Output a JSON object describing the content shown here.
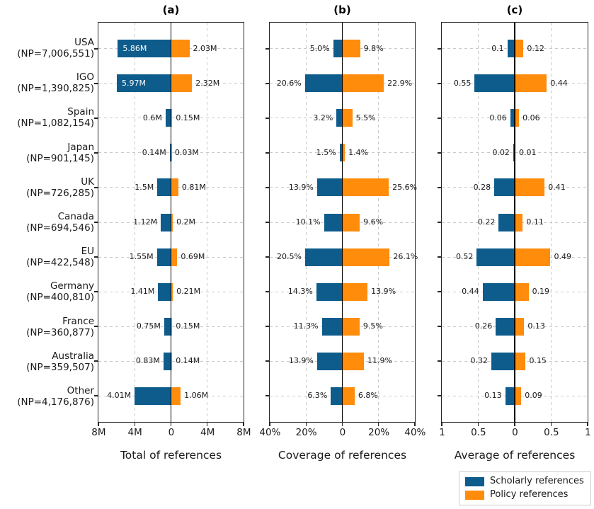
{
  "chart_data": {
    "type": "bar",
    "variant": "horizontal-diverging-bars",
    "grid": "dashed",
    "categories": [
      "USA",
      "IGO",
      "Spain",
      "Japan",
      "UK",
      "Canada",
      "EU",
      "Germany",
      "France",
      "Australia",
      "Other"
    ],
    "category_np": [
      "(NP=7,006,551)",
      "(NP=1,390,825)",
      "(NP=1,082,154)",
      "(NP=901,145)",
      "(NP=726,285)",
      "(NP=694,546)",
      "(NP=422,548)",
      "(NP=400,810)",
      "(NP=360,877)",
      "(NP=359,507)",
      "(NP=4,176,876)"
    ],
    "colors": {
      "scholarly": "#0d5c8c",
      "policy": "#ff8c0a"
    },
    "legend": {
      "position": "bottom-right",
      "entries": [
        {
          "label": "Scholarly references",
          "color_key": "scholarly"
        },
        {
          "label": "Policy references",
          "color_key": "policy"
        }
      ]
    },
    "panels": [
      {
        "label": "(a)",
        "xlabel": "Total of references",
        "xmax": 8,
        "tick_labels": [
          "8M",
          "4M",
          "0",
          "4M",
          "8M"
        ],
        "series": [
          {
            "name": "Scholarly references",
            "side": "left",
            "values": [
              5.86,
              5.97,
              0.6,
              0.14,
              1.5,
              1.12,
              1.55,
              1.41,
              0.75,
              0.83,
              4.01
            ],
            "labels": [
              "5.86M",
              "5.97M",
              "0.6M",
              "0.14M",
              "1.5M",
              "1.12M",
              "1.55M",
              "1.41M",
              "0.75M",
              "0.83M",
              "4.01M"
            ],
            "inside_label_indices": [
              0,
              1
            ]
          },
          {
            "name": "Policy references",
            "side": "right",
            "values": [
              2.03,
              2.32,
              0.15,
              0.03,
              0.81,
              0.2,
              0.69,
              0.21,
              0.15,
              0.14,
              1.06
            ],
            "labels": [
              "2.03M",
              "2.32M",
              "0.15M",
              "0.03M",
              "0.81M",
              "0.2M",
              "0.69M",
              "0.21M",
              "0.15M",
              "0.14M",
              "1.06M"
            ],
            "inside_label_indices": []
          }
        ]
      },
      {
        "label": "(b)",
        "xlabel": "Coverage of references",
        "xmax": 40,
        "tick_labels": [
          "40%",
          "20%",
          "0",
          "20%",
          "40%"
        ],
        "series": [
          {
            "name": "Scholarly references",
            "side": "left",
            "values": [
              5.0,
              20.6,
              3.2,
              1.5,
              13.9,
              10.1,
              20.5,
              14.3,
              11.3,
              13.9,
              6.3
            ],
            "labels": [
              "5.0%",
              "20.6%",
              "3.2%",
              "1.5%",
              "13.9%",
              "10.1%",
              "20.5%",
              "14.3%",
              "11.3%",
              "13.9%",
              "6.3%"
            ],
            "inside_label_indices": []
          },
          {
            "name": "Policy references",
            "side": "right",
            "values": [
              9.8,
              22.9,
              5.5,
              1.4,
              25.6,
              9.6,
              26.1,
              13.9,
              9.5,
              11.9,
              6.8
            ],
            "labels": [
              "9.8%",
              "22.9%",
              "5.5%",
              "1.4%",
              "25.6%",
              "9.6%",
              "26.1%",
              "13.9%",
              "9.5%",
              "11.9%",
              "6.8%"
            ],
            "inside_label_indices": []
          }
        ]
      },
      {
        "label": "(c)",
        "xlabel": "Average of references",
        "xmax": 1,
        "tick_labels": [
          "1",
          "0.5",
          "0",
          "0.5",
          "1"
        ],
        "series": [
          {
            "name": "Scholarly references",
            "side": "left",
            "values": [
              0.1,
              0.55,
              0.06,
              0.02,
              0.28,
              0.22,
              0.52,
              0.44,
              0.26,
              0.32,
              0.13
            ],
            "labels": [
              "0.1",
              "0.55",
              "0.06",
              "0.02",
              "0.28",
              "0.22",
              "0.52",
              "0.44",
              "0.26",
              "0.32",
              "0.13"
            ],
            "inside_label_indices": []
          },
          {
            "name": "Policy references",
            "side": "right",
            "values": [
              0.12,
              0.44,
              0.06,
              0.01,
              0.41,
              0.11,
              0.49,
              0.19,
              0.13,
              0.15,
              0.09
            ],
            "labels": [
              "0.12",
              "0.44",
              "0.06",
              "0.01",
              "0.41",
              "0.11",
              "0.49",
              "0.19",
              "0.13",
              "0.15",
              "0.09"
            ],
            "inside_label_indices": []
          }
        ]
      }
    ]
  }
}
